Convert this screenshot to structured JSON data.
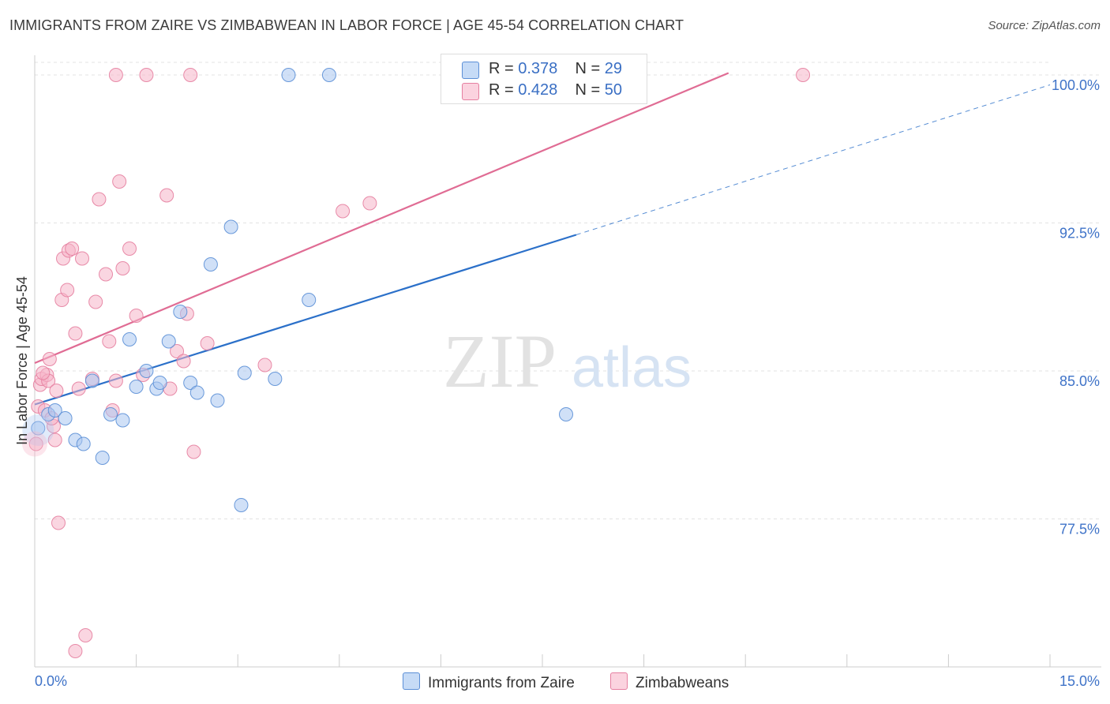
{
  "title": "IMMIGRANTS FROM ZAIRE VS ZIMBABWEAN IN LABOR FORCE | AGE 45-54 CORRELATION CHART",
  "source": "Source: ZipAtlas.com",
  "watermark": {
    "zip": "ZIP",
    "atlas": "atlas"
  },
  "legend_stats": [
    {
      "r_label": "R =",
      "r_value": "0.378",
      "n_label": "N =",
      "n_value": "29",
      "color": "#a9c7f0"
    },
    {
      "r_label": "R =",
      "r_value": "0.428",
      "n_label": "N =",
      "n_value": "50",
      "color": "#f5b5c8"
    }
  ],
  "chart_data": {
    "type": "scatter",
    "title": "IMMIGRANTS FROM ZAIRE VS ZIMBABWEAN IN LABOR FORCE | AGE 45-54 CORRELATION CHART",
    "xlabel": "",
    "ylabel": "In Labor Force | Age 45-54",
    "xlim": [
      0,
      15
    ],
    "ylim": [
      70.0,
      101.0
    ],
    "x_tick_labels": [
      "0.0%",
      "15.0%"
    ],
    "y_ticks": [
      77.5,
      85.0,
      92.5,
      100.0
    ],
    "y_tick_labels": [
      "77.5%",
      "85.0%",
      "92.5%",
      "100.0%"
    ],
    "grid": true,
    "legend_position": "bottom",
    "series": [
      {
        "name": "Immigrants from Zaire",
        "color": "#5b8fd6",
        "fill": "#a9c7f0",
        "trend": {
          "x": [
            0.0,
            8.0
          ],
          "y": [
            83.3,
            91.9
          ],
          "extend_to_x": 15.0,
          "extend_to_y": 99.5,
          "color": "#2b70c9"
        },
        "points": [
          {
            "x": 0.05,
            "y": 82.1
          },
          {
            "x": 0.2,
            "y": 82.8
          },
          {
            "x": 0.3,
            "y": 83.0
          },
          {
            "x": 0.45,
            "y": 82.6
          },
          {
            "x": 0.6,
            "y": 81.5
          },
          {
            "x": 0.72,
            "y": 81.3
          },
          {
            "x": 0.85,
            "y": 84.5
          },
          {
            "x": 1.0,
            "y": 80.6
          },
          {
            "x": 1.12,
            "y": 82.8
          },
          {
            "x": 1.3,
            "y": 82.5
          },
          {
            "x": 1.4,
            "y": 86.6
          },
          {
            "x": 1.5,
            "y": 84.2
          },
          {
            "x": 1.65,
            "y": 85.0
          },
          {
            "x": 1.8,
            "y": 84.1
          },
          {
            "x": 1.85,
            "y": 84.4
          },
          {
            "x": 1.98,
            "y": 86.5
          },
          {
            "x": 2.15,
            "y": 88.0
          },
          {
            "x": 2.3,
            "y": 84.4
          },
          {
            "x": 2.4,
            "y": 83.9
          },
          {
            "x": 2.6,
            "y": 90.4
          },
          {
            "x": 2.7,
            "y": 83.5
          },
          {
            "x": 2.9,
            "y": 92.3
          },
          {
            "x": 3.05,
            "y": 78.2
          },
          {
            "x": 3.1,
            "y": 84.9
          },
          {
            "x": 3.55,
            "y": 84.6
          },
          {
            "x": 4.05,
            "y": 88.6
          },
          {
            "x": 3.75,
            "y": 100.0
          },
          {
            "x": 4.35,
            "y": 100.0
          },
          {
            "x": 7.85,
            "y": 82.8
          }
        ]
      },
      {
        "name": "Zimbabweans",
        "color": "#e57fa0",
        "fill": "#f5b5c8",
        "trend": {
          "x": [
            0.0,
            10.25
          ],
          "y": [
            85.4,
            100.1
          ],
          "color": "#e06c94"
        },
        "points": [
          {
            "x": 0.02,
            "y": 81.3
          },
          {
            "x": 0.05,
            "y": 83.2
          },
          {
            "x": 0.08,
            "y": 84.3
          },
          {
            "x": 0.1,
            "y": 84.6
          },
          {
            "x": 0.15,
            "y": 83.0
          },
          {
            "x": 0.18,
            "y": 84.8
          },
          {
            "x": 0.2,
            "y": 84.5
          },
          {
            "x": 0.22,
            "y": 85.6
          },
          {
            "x": 0.28,
            "y": 82.2
          },
          {
            "x": 0.3,
            "y": 81.5
          },
          {
            "x": 0.32,
            "y": 84.0
          },
          {
            "x": 0.35,
            "y": 77.3
          },
          {
            "x": 0.4,
            "y": 88.6
          },
          {
            "x": 0.42,
            "y": 90.7
          },
          {
            "x": 0.48,
            "y": 89.1
          },
          {
            "x": 0.5,
            "y": 91.1
          },
          {
            "x": 0.55,
            "y": 91.2
          },
          {
            "x": 0.6,
            "y": 86.9
          },
          {
            "x": 0.65,
            "y": 84.1
          },
          {
            "x": 0.7,
            "y": 90.7
          },
          {
            "x": 0.75,
            "y": 71.6
          },
          {
            "x": 0.6,
            "y": 70.8
          },
          {
            "x": 0.85,
            "y": 84.6
          },
          {
            "x": 0.9,
            "y": 88.5
          },
          {
            "x": 0.95,
            "y": 93.7
          },
          {
            "x": 1.05,
            "y": 89.9
          },
          {
            "x": 1.1,
            "y": 86.5
          },
          {
            "x": 1.15,
            "y": 83.0
          },
          {
            "x": 1.2,
            "y": 84.5
          },
          {
            "x": 1.25,
            "y": 94.6
          },
          {
            "x": 1.3,
            "y": 90.2
          },
          {
            "x": 1.4,
            "y": 91.2
          },
          {
            "x": 1.5,
            "y": 87.8
          },
          {
            "x": 1.6,
            "y": 84.8
          },
          {
            "x": 1.65,
            "y": 100.0
          },
          {
            "x": 1.2,
            "y": 100.0
          },
          {
            "x": 1.95,
            "y": 93.9
          },
          {
            "x": 2.0,
            "y": 84.1
          },
          {
            "x": 2.1,
            "y": 86.0
          },
          {
            "x": 2.2,
            "y": 85.5
          },
          {
            "x": 2.25,
            "y": 87.9
          },
          {
            "x": 2.3,
            "y": 100.0
          },
          {
            "x": 2.35,
            "y": 80.9
          },
          {
            "x": 2.55,
            "y": 86.4
          },
          {
            "x": 3.4,
            "y": 85.3
          },
          {
            "x": 4.55,
            "y": 93.1
          },
          {
            "x": 4.95,
            "y": 93.5
          },
          {
            "x": 11.35,
            "y": 100.0
          },
          {
            "x": 0.12,
            "y": 84.9
          },
          {
            "x": 0.25,
            "y": 82.6
          }
        ]
      }
    ]
  }
}
